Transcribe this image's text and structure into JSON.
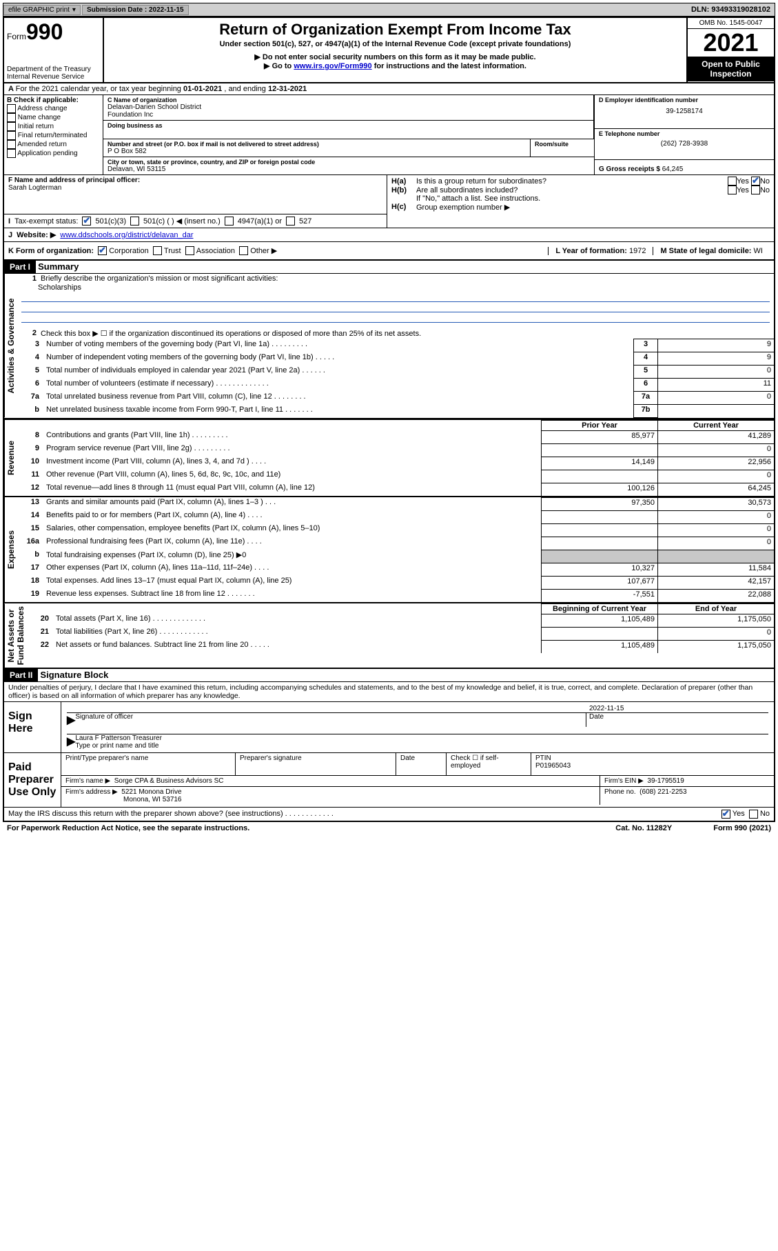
{
  "top_bar": {
    "efile": "efile GRAPHIC print",
    "sub_label": "Submission Date :",
    "sub_date": "2022-11-15",
    "dln": "DLN: 93493319028102"
  },
  "header": {
    "form_prefix": "Form",
    "form_no": "990",
    "dept": "Department of the Treasury",
    "irs": "Internal Revenue Service",
    "title": "Return of Organization Exempt From Income Tax",
    "sub1": "Under section 501(c), 527, or 4947(a)(1) of the Internal Revenue Code (except private foundations)",
    "sub2": "▶ Do not enter social security numbers on this form as it may be made public.",
    "sub3a": "▶ Go to ",
    "sub3_link": "www.irs.gov/Form990",
    "sub3b": " for instructions and the latest information.",
    "omb": "OMB No. 1545-0047",
    "year": "2021",
    "inspection1": "Open to Public",
    "inspection2": "Inspection"
  },
  "row_a": {
    "a": "A",
    "text1": "For the 2021 calendar year, or tax year beginning ",
    "begin": "01-01-2021",
    "mid": " , and ending ",
    "end": "12-31-2021"
  },
  "box_b": {
    "label": "B Check if applicable:",
    "addr": "Address change",
    "name": "Name change",
    "initial": "Initial return",
    "final": "Final return/terminated",
    "amended": "Amended return",
    "app": "Application pending"
  },
  "box_c": {
    "label": "C Name of organization",
    "org1": "Delavan-Darien School District",
    "org2": "Foundation Inc",
    "dba_label": "Doing business as",
    "addr_label": "Number and street (or P.O. box if mail is not delivered to street address)",
    "room_label": "Room/suite",
    "addr": "P O Box 582",
    "city_label": "City or town, state or province, country, and ZIP or foreign postal code",
    "city": "Delavan, WI  53115"
  },
  "box_d": {
    "label": "D Employer identification number",
    "ein": "39-1258174"
  },
  "box_e": {
    "label": "E Telephone number",
    "phone": "(262) 728-3938"
  },
  "box_g": {
    "label": "G Gross receipts $",
    "val": "64,245"
  },
  "box_f": {
    "label": "F Name and address of principal officer:",
    "name": "Sarah Logterman"
  },
  "box_h": {
    "ha": "H(a)",
    "ha_text": "Is this a group return for subordinates?",
    "hb": "H(b)",
    "hb_text": "Are all subordinates included?",
    "hb_note": "If \"No,\" attach a list. See instructions.",
    "hc": "H(c)",
    "hc_text": "Group exemption number ▶",
    "yes": "Yes",
    "no": "No"
  },
  "row_i": {
    "label": "I",
    "text": "Tax-exempt status:",
    "c3": "501(c)(3)",
    "c": "501(c) (   ) ◀ (insert no.)",
    "a1": "4947(a)(1) or",
    "527": "527"
  },
  "row_j": {
    "label": "J",
    "text": "Website: ▶",
    "url": "www.ddschools.org/district/delavan_dar"
  },
  "row_k": {
    "label": "K Form of organization:",
    "corp": "Corporation",
    "trust": "Trust",
    "assoc": "Association",
    "other": "Other ▶",
    "l_label": "L Year of formation:",
    "l_val": "1972",
    "m_label": "M State of legal domicile:",
    "m_val": "WI"
  },
  "part1": {
    "part": "Part I",
    "title": "Summary",
    "l1_num": "1",
    "l1": "Briefly describe the organization's mission or most significant activities:",
    "l1_val": "Scholarships",
    "l2_num": "2",
    "l2": "Check this box ▶ ☐ if the organization discontinued its operations or disposed of more than 25% of its net assets.",
    "lines": [
      {
        "n": "3",
        "d": "Number of voting members of the governing body (Part VI, line 1a)    .    .    .    .    .    .    .    .    .",
        "b": "3",
        "v": "9"
      },
      {
        "n": "4",
        "d": "Number of independent voting members of the governing body (Part VI, line 1b)    .    .    .    .    .",
        "b": "4",
        "v": "9"
      },
      {
        "n": "5",
        "d": "Total number of individuals employed in calendar year 2021 (Part V, line 2a)    .    .    .    .    .    .",
        "b": "5",
        "v": "0"
      },
      {
        "n": "6",
        "d": "Total number of volunteers (estimate if necessary)    .    .    .    .    .    .    .    .    .    .    .    .    .",
        "b": "6",
        "v": "11"
      },
      {
        "n": "7a",
        "d": "Total unrelated business revenue from Part VIII, column (C), line 12    .    .    .    .    .    .    .    .",
        "b": "7a",
        "v": "0"
      },
      {
        "n": "b",
        "d": "Net unrelated business taxable income from Form 990-T, Part I, line 11    .    .    .    .    .    .    .",
        "b": "7b",
        "v": ""
      }
    ],
    "prior": "Prior Year",
    "current": "Current Year",
    "rev": [
      {
        "n": "8",
        "d": "Contributions and grants (Part VIII, line 1h)    .    .    .    .    .    .    .    .    .",
        "p": "85,977",
        "c": "41,289"
      },
      {
        "n": "9",
        "d": "Program service revenue (Part VIII, line 2g)    .    .    .    .    .    .    .    .    .",
        "p": "",
        "c": "0"
      },
      {
        "n": "10",
        "d": "Investment income (Part VIII, column (A), lines 3, 4, and 7d )    .    .    .    .",
        "p": "14,149",
        "c": "22,956"
      },
      {
        "n": "11",
        "d": "Other revenue (Part VIII, column (A), lines 5, 6d, 8c, 9c, 10c, and 11e)",
        "p": "",
        "c": "0"
      },
      {
        "n": "12",
        "d": "Total revenue—add lines 8 through 11 (must equal Part VIII, column (A), line 12)",
        "p": "100,126",
        "c": "64,245"
      }
    ],
    "exp": [
      {
        "n": "13",
        "d": "Grants and similar amounts paid (Part IX, column (A), lines 1–3 )    .    .    .",
        "p": "97,350",
        "c": "30,573"
      },
      {
        "n": "14",
        "d": "Benefits paid to or for members (Part IX, column (A), line 4)    .    .    .    .",
        "p": "",
        "c": "0"
      },
      {
        "n": "15",
        "d": "Salaries, other compensation, employee benefits (Part IX, column (A), lines 5–10)",
        "p": "",
        "c": "0"
      },
      {
        "n": "16a",
        "d": "Professional fundraising fees (Part IX, column (A), line 11e)    .    .    .    .",
        "p": "",
        "c": "0"
      },
      {
        "n": "b",
        "d": "Total fundraising expenses (Part IX, column (D), line 25) ▶0",
        "p": "",
        "c": "",
        "shaded": true
      },
      {
        "n": "17",
        "d": "Other expenses (Part IX, column (A), lines 11a–11d, 11f–24e)    .    .    .    .",
        "p": "10,327",
        "c": "11,584"
      },
      {
        "n": "18",
        "d": "Total expenses. Add lines 13–17 (must equal Part IX, column (A), line 25)",
        "p": "107,677",
        "c": "42,157"
      },
      {
        "n": "19",
        "d": "Revenue less expenses. Subtract line 18 from line 12    .    .    .    .    .    .    .",
        "p": "-7,551",
        "c": "22,088"
      }
    ],
    "begin": "Beginning of Current Year",
    "end": "End of Year",
    "net": [
      {
        "n": "20",
        "d": "Total assets (Part X, line 16)    .    .    .    .    .    .    .    .    .    .    .    .    .",
        "p": "1,105,489",
        "c": "1,175,050"
      },
      {
        "n": "21",
        "d": "Total liabilities (Part X, line 26)    .    .    .    .    .    .    .    .    .    .    .    .",
        "p": "",
        "c": "0"
      },
      {
        "n": "22",
        "d": "Net assets or fund balances. Subtract line 21 from line 20    .    .    .    .    .",
        "p": "1,105,489",
        "c": "1,175,050"
      }
    ],
    "vert_ag": "Activities & Governance",
    "vert_rev": "Revenue",
    "vert_exp": "Expenses",
    "vert_net": "Net Assets or\nFund Balances"
  },
  "part2": {
    "part": "Part II",
    "title": "Signature Block",
    "penalty": "Under penalties of perjury, I declare that I have examined this return, including accompanying schedules and statements, and to the best of my knowledge and belief, it is true, correct, and complete. Declaration of preparer (other than officer) is based on all information of which preparer has any knowledge.",
    "sign_here": "Sign Here",
    "sig_officer": "Signature of officer",
    "sig_date": "Date",
    "sig_date_val": "2022-11-15",
    "officer_name": "Laura F Patterson Treasurer",
    "type_name": "Type or print name and title",
    "paid": "Paid Preparer Use Only",
    "prep_name_label": "Print/Type preparer's name",
    "prep_sig_label": "Preparer's signature",
    "date_label": "Date",
    "check_if": "Check ☐ if self-employed",
    "ptin_label": "PTIN",
    "ptin": "P01965043",
    "firm_name_label": "Firm's name    ▶",
    "firm_name": "Sorge CPA & Business Advisors SC",
    "firm_ein_label": "Firm's EIN ▶",
    "firm_ein": "39-1795519",
    "firm_addr_label": "Firm's address ▶",
    "firm_addr1": "5221 Monona Drive",
    "firm_addr2": "Monona, WI  53716",
    "phone_label": "Phone no.",
    "phone": "(608) 221-2253",
    "may_irs": "May the IRS discuss this return with the preparer shown above? (see instructions)    .    .    .    .    .    .    .    .    .    .    .    .",
    "yes": "Yes",
    "no": "No"
  },
  "footer": {
    "paperwork": "For Paperwork Reduction Act Notice, see the separate instructions.",
    "cat": "Cat. No. 11282Y",
    "form": "Form 990 (2021)"
  }
}
